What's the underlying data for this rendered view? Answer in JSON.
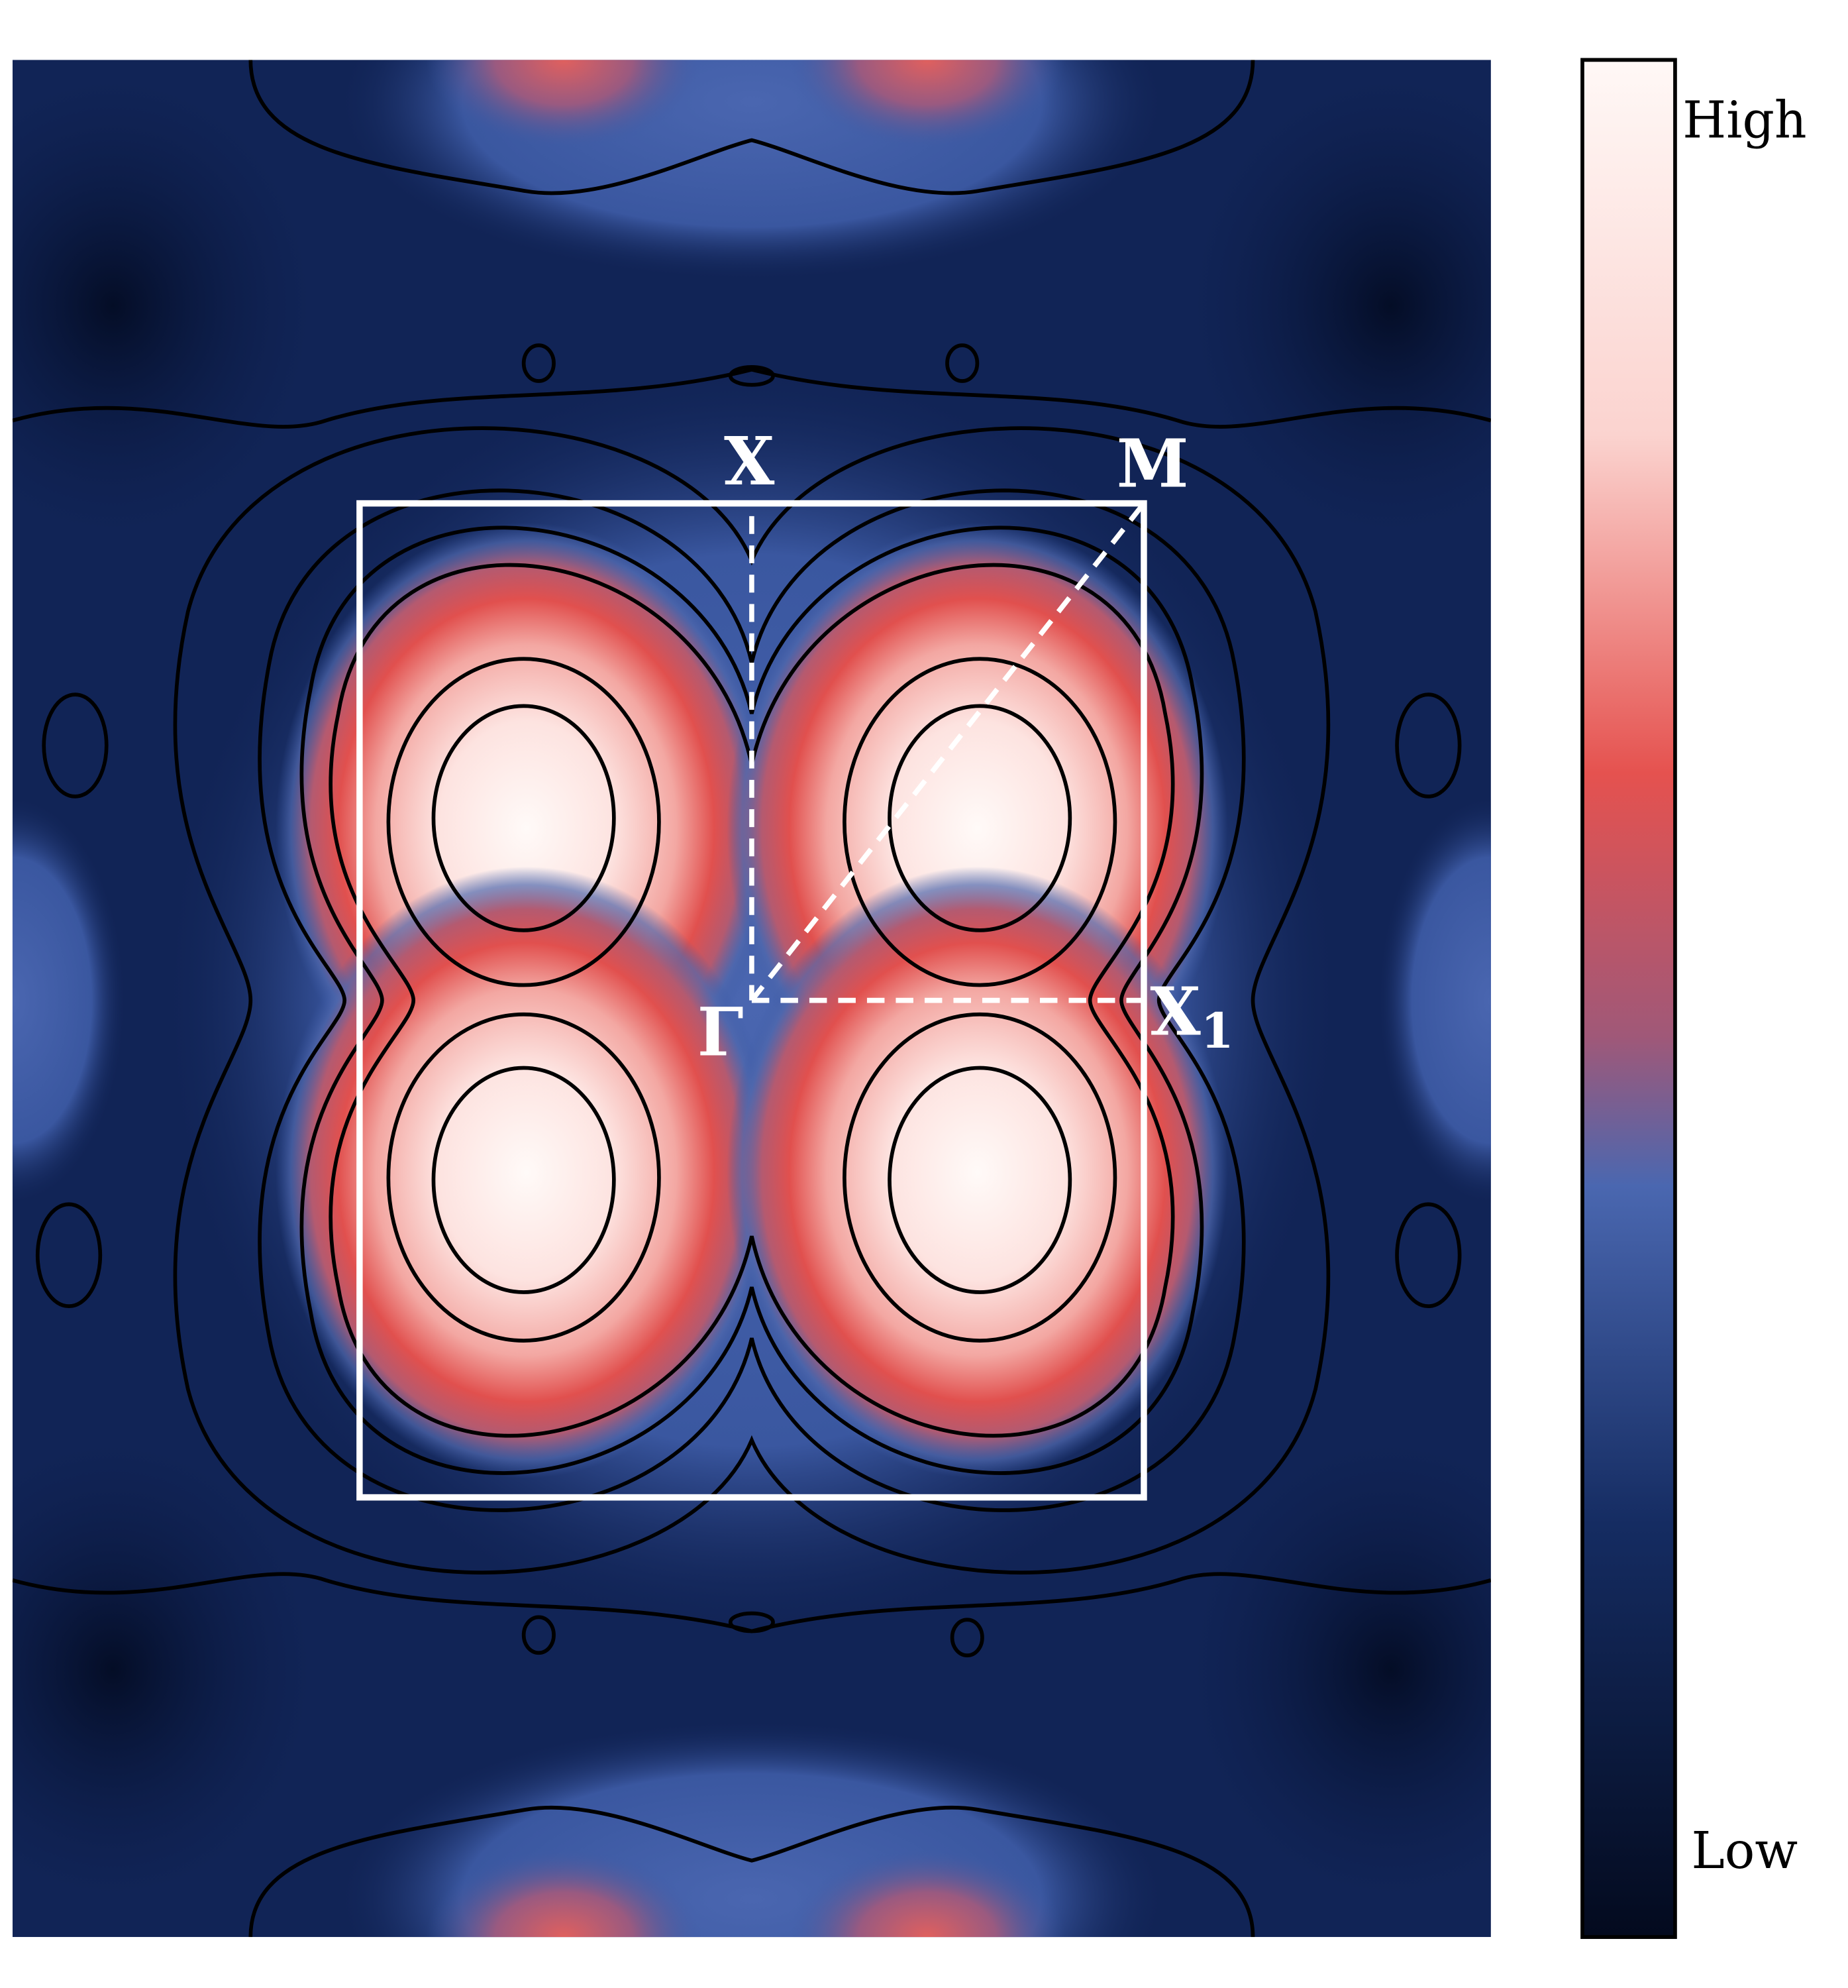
{
  "chart_data": {
    "type": "contour",
    "colorbar": {
      "labels": [
        "High",
        "Low"
      ]
    },
    "points": [
      {
        "label": "X"
      },
      {
        "label": "M"
      },
      {
        "label": "Γ"
      },
      {
        "label": "X"
      }
    ],
    "point_subscripts": [
      "1"
    ]
  }
}
